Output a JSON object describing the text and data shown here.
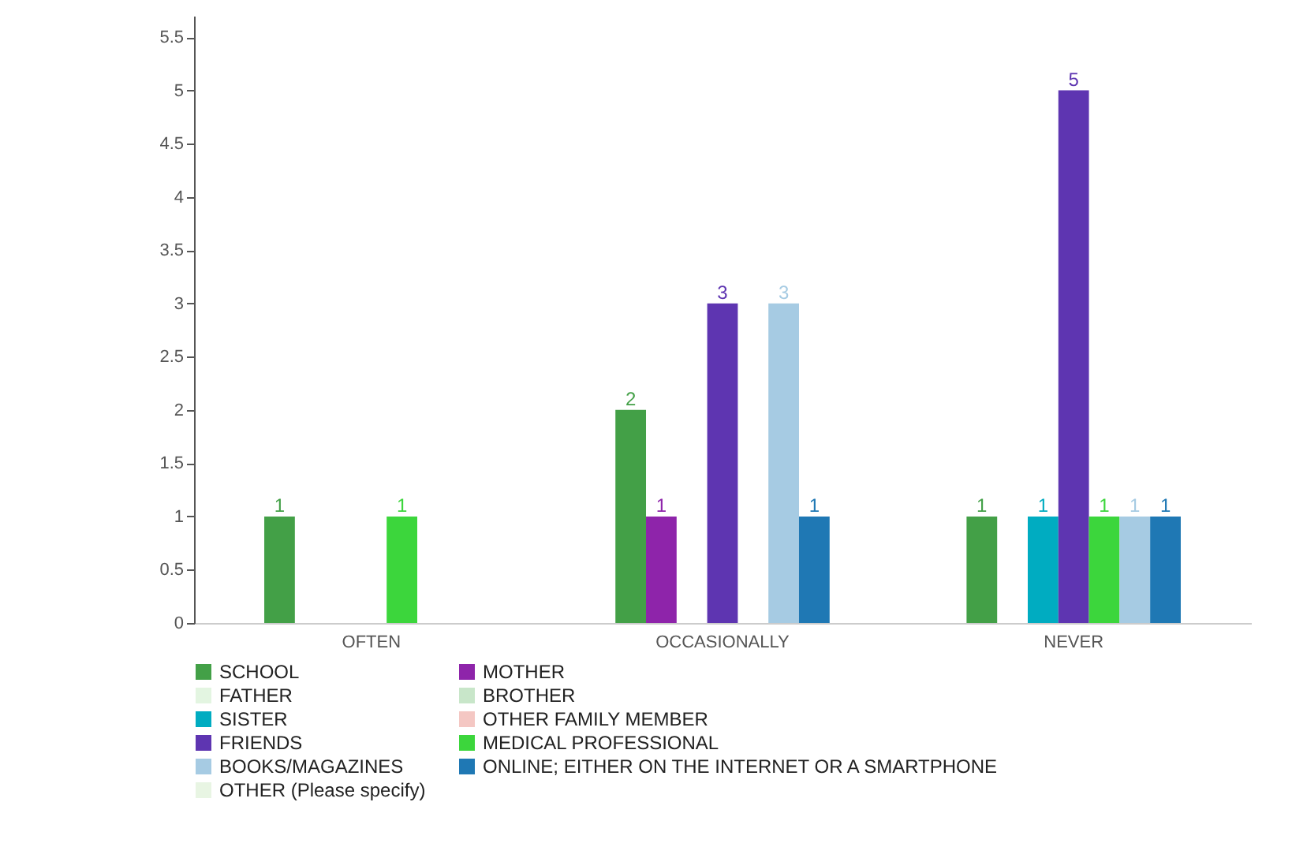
{
  "chart_data": {
    "type": "bar",
    "categories": [
      "OFTEN",
      "OCCASIONALLY",
      "NEVER"
    ],
    "series": [
      {
        "name": "SCHOOL",
        "color": "#43a047",
        "values": [
          1,
          2,
          1
        ]
      },
      {
        "name": "MOTHER",
        "color": "#8e24aa",
        "values": [
          null,
          1,
          null
        ]
      },
      {
        "name": "FATHER",
        "color": "#e3f5e1",
        "values": [
          null,
          null,
          null
        ]
      },
      {
        "name": "BROTHER",
        "color": "#c8e6c9",
        "values": [
          null,
          null,
          null
        ]
      },
      {
        "name": "SISTER",
        "color": "#00acc1",
        "values": [
          null,
          null,
          1
        ]
      },
      {
        "name": "OTHER FAMILY MEMBER",
        "color": "#f4c7c3",
        "values": [
          null,
          null,
          null
        ]
      },
      {
        "name": "FRIENDS",
        "color": "#5e35b1",
        "values": [
          null,
          3,
          5
        ]
      },
      {
        "name": "MEDICAL PROFESSIONAL",
        "color": "#3cd63c",
        "values": [
          1,
          null,
          1
        ]
      },
      {
        "name": "BOOKS/MAGAZINES",
        "color": "#a6cbe3",
        "values": [
          null,
          3,
          1
        ]
      },
      {
        "name": "ONLINE; EITHER ON THE INTERNET OR A SMARTPHONE",
        "color": "#1f78b4",
        "values": [
          null,
          1,
          1
        ]
      },
      {
        "name": "OTHER (Please specify)",
        "color": "#e8f5e3",
        "values": [
          null,
          null,
          null
        ]
      }
    ],
    "ylim": [
      0,
      5.7
    ],
    "yticks": [
      0,
      0.5,
      1,
      1.5,
      2,
      2.5,
      3,
      3.5,
      4,
      4.5,
      5,
      5.5
    ],
    "data_labels": true,
    "legend": "bottom"
  }
}
